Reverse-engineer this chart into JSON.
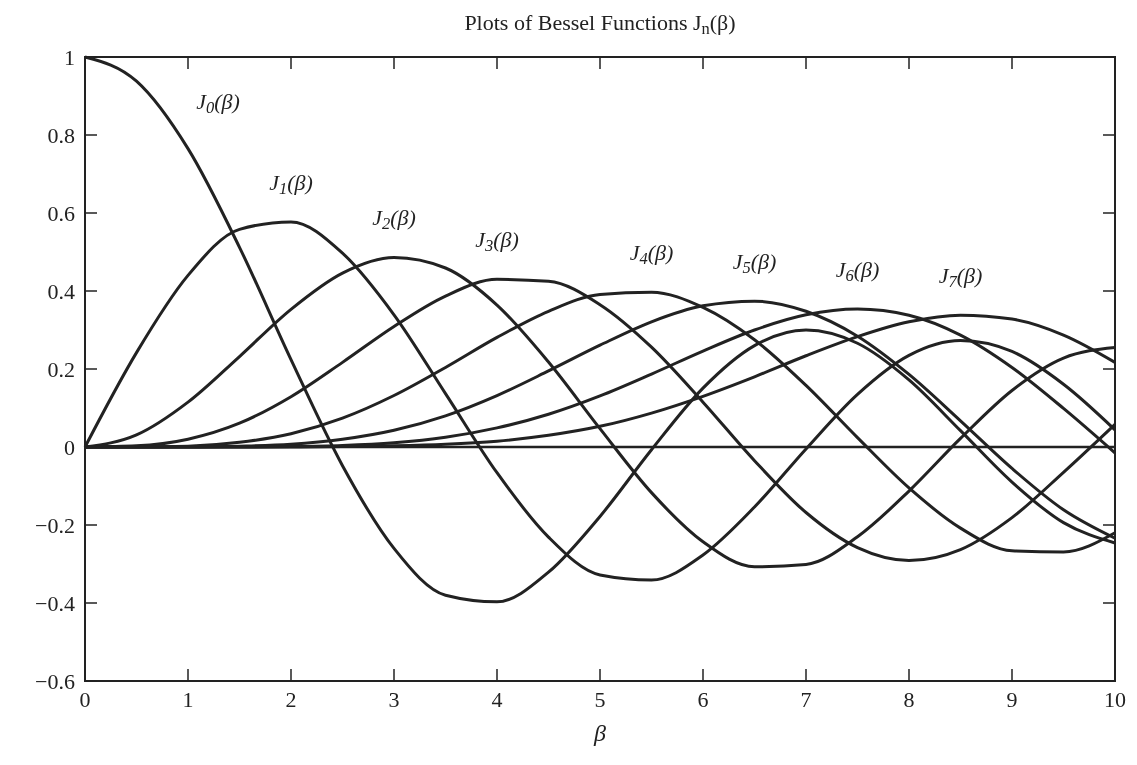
{
  "chart_data": {
    "type": "line",
    "title": "Plots of Bessel Functions J$_{n}$(β)",
    "xlabel": "β",
    "x": [
      0,
      0.5,
      1,
      1.5,
      2,
      2.5,
      3,
      3.5,
      4,
      4.5,
      5,
      5.5,
      6,
      6.5,
      7,
      7.5,
      8,
      8.5,
      9,
      9.5,
      10
    ],
    "series": [
      {
        "name": "J$_{0}$(β)",
        "color": "#222222",
        "values": [
          1,
          0.938,
          0.765,
          0.512,
          0.224,
          -0.048,
          -0.26,
          -0.38,
          -0.397,
          -0.321,
          -0.178,
          -0.007,
          0.151,
          0.26,
          0.3,
          0.266,
          0.172,
          0.042,
          -0.09,
          -0.194,
          -0.246
        ]
      },
      {
        "name": "J$_{1}$(β)",
        "color": "#222222",
        "values": [
          0,
          0.242,
          0.44,
          0.558,
          0.577,
          0.497,
          0.339,
          0.137,
          -0.066,
          -0.231,
          -0.328,
          -0.341,
          -0.277,
          -0.154,
          -0.005,
          0.135,
          0.235,
          0.273,
          0.245,
          0.161,
          0.044
        ]
      },
      {
        "name": "J$_{2}$(β)",
        "color": "#222222",
        "values": [
          0,
          0.031,
          0.115,
          0.232,
          0.353,
          0.446,
          0.486,
          0.459,
          0.364,
          0.218,
          0.047,
          -0.117,
          -0.243,
          -0.307,
          -0.301,
          -0.23,
          -0.113,
          0.022,
          0.145,
          0.228,
          0.255
        ]
      },
      {
        "name": "J$_{3}$(β)",
        "color": "#222222",
        "values": [
          0,
          0.003,
          0.02,
          0.061,
          0.129,
          0.217,
          0.309,
          0.387,
          0.43,
          0.425,
          0.365,
          0.256,
          0.115,
          -0.035,
          -0.168,
          -0.258,
          -0.291,
          -0.263,
          -0.181,
          -0.065,
          0.058
        ]
      },
      {
        "name": "J$_{4}$(β)",
        "color": "#222222",
        "values": [
          0,
          0,
          0.002,
          0.012,
          0.034,
          0.074,
          0.132,
          0.204,
          0.281,
          0.348,
          0.391,
          0.397,
          0.358,
          0.275,
          0.158,
          0.024,
          -0.105,
          -0.208,
          -0.266,
          -0.269,
          -0.22
        ]
      },
      {
        "name": "J$_{5}$(β)",
        "color": "#222222",
        "values": [
          0,
          0,
          0,
          0.002,
          0.007,
          0.02,
          0.043,
          0.08,
          0.132,
          0.195,
          0.261,
          0.321,
          0.362,
          0.374,
          0.348,
          0.284,
          0.186,
          0.067,
          -0.055,
          -0.161,
          -0.234
        ]
      },
      {
        "name": "J$_{6}$(β)",
        "color": "#222222",
        "values": [
          0,
          0,
          0,
          0,
          0.001,
          0.004,
          0.011,
          0.025,
          0.049,
          0.084,
          0.131,
          0.187,
          0.246,
          0.3,
          0.339,
          0.354,
          0.338,
          0.287,
          0.204,
          0.099,
          -0.015
        ]
      },
      {
        "name": "J$_{7}$(β)",
        "color": "#222222",
        "values": [
          0,
          0,
          0,
          0,
          0,
          0.001,
          0.003,
          0.007,
          0.015,
          0.03,
          0.053,
          0.087,
          0.13,
          0.18,
          0.234,
          0.283,
          0.321,
          0.338,
          0.328,
          0.287,
          0.217
        ]
      }
    ],
    "ref_lines": [
      {
        "axis": "y",
        "value": 0,
        "color": "#222222"
      }
    ],
    "xlim": [
      0,
      10
    ],
    "xticks": [
      0,
      1,
      2,
      3,
      4,
      5,
      6,
      7,
      8,
      9,
      10
    ],
    "ylim": [
      -0.6,
      1
    ],
    "yticks": [
      {
        "value": -0.6,
        "label": "−0.6"
      },
      {
        "value": -0.4,
        "label": "−0.4"
      },
      {
        "value": -0.2,
        "label": "−0.2"
      },
      0,
      0.2,
      0.4,
      0.6,
      0.8,
      1
    ],
    "grid": false,
    "marker": "none",
    "line_style": "solid"
  }
}
